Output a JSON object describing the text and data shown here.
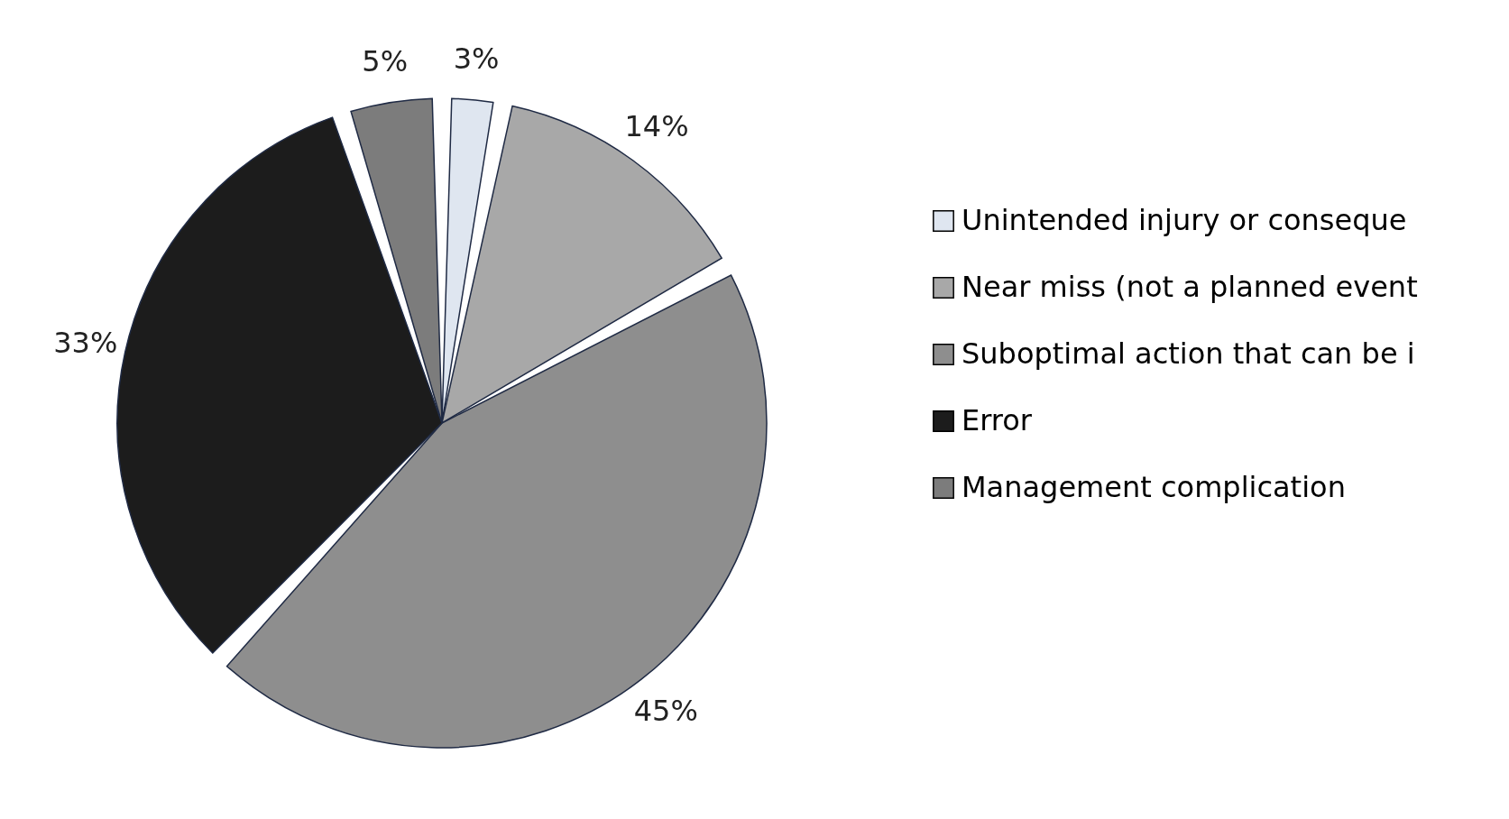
{
  "chart_data": {
    "type": "pie",
    "categories": [
      "Unintended injury or conseque",
      "Near miss (not a planned event",
      "Suboptimal action that can be i",
      "Error",
      "Management complication"
    ],
    "values": [
      3,
      14,
      45,
      33,
      5
    ],
    "value_labels": [
      "3%",
      "14%",
      "45%",
      "33%",
      "5%"
    ],
    "colors": [
      "#dfe6f0",
      "#a8a8a8",
      "#8e8e8e",
      "#1c1c1c",
      "#7c7c7c"
    ],
    "legend": "right"
  }
}
